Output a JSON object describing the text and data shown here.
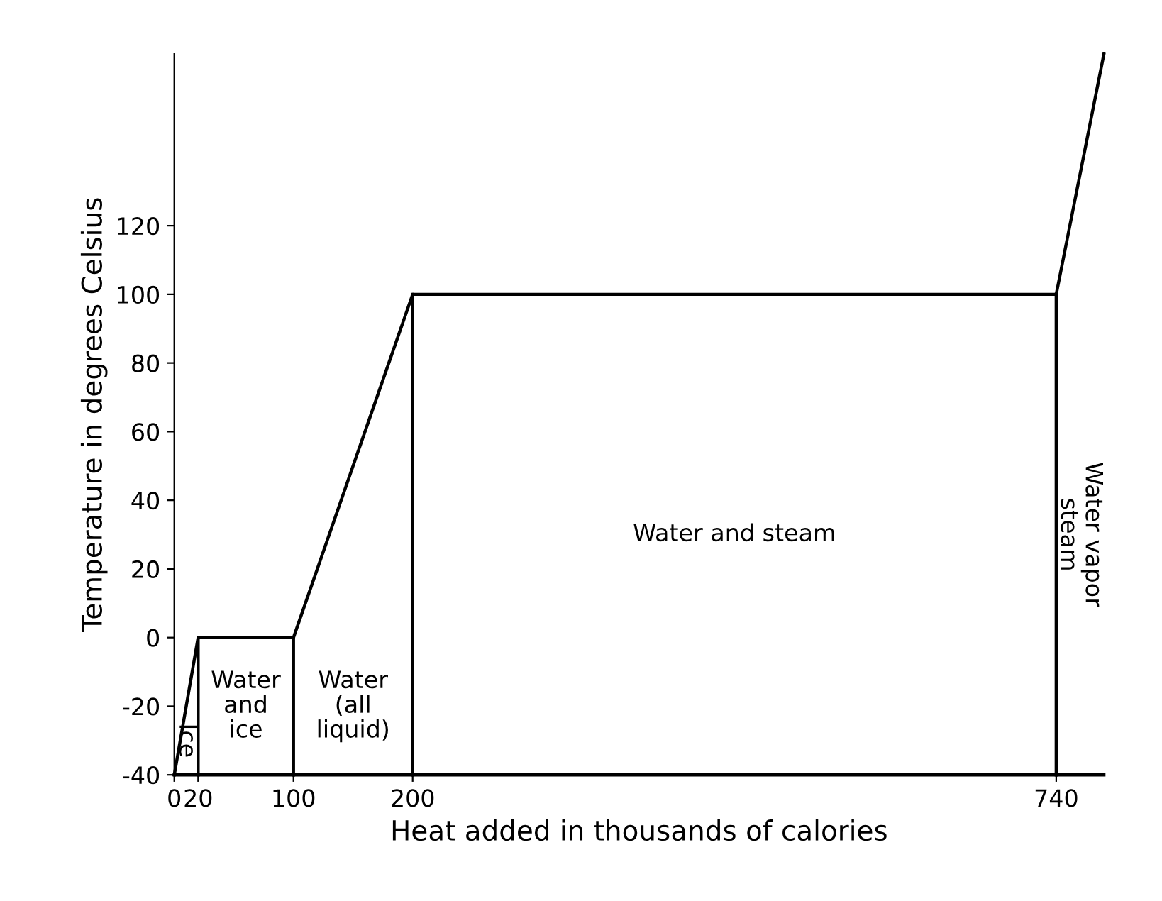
{
  "chart_data": {
    "type": "line",
    "xlabel": "Heat added in thousands of calories",
    "ylabel": "Temperature in degrees Celsius",
    "series": [
      {
        "color": "#000000",
        "x": [
          0,
          20,
          100,
          200,
          740,
          780
        ],
        "values": [
          -40,
          0,
          0,
          100,
          100,
          170
        ]
      },
      {
        "color": "#000000",
        "x": [
          20,
          20
        ],
        "values": [
          0,
          -40
        ]
      },
      {
        "color": "#000000",
        "x": [
          100,
          100
        ],
        "values": [
          0,
          -40
        ]
      },
      {
        "color": "#000000",
        "x": [
          200,
          200
        ],
        "values": [
          100,
          -40
        ]
      },
      {
        "color": "#000000",
        "x": [
          740,
          740
        ],
        "values": [
          100,
          -40
        ]
      },
      {
        "color": "#000000",
        "x": [
          0,
          780
        ],
        "values": [
          -40,
          -40
        ]
      }
    ],
    "xlim": [
      0,
      780
    ],
    "xticks": [
      0,
      20,
      100,
      200,
      740
    ],
    "ylim": [
      -40,
      170
    ],
    "yticks": [
      -40,
      -20,
      0,
      20,
      40,
      60,
      80,
      100,
      120
    ],
    "grid": false,
    "marker": "none",
    "line_style": "solid",
    "annotations": [
      "Ice",
      "Water\nand\nice",
      "Water\n(all\nliquid)",
      "Water and steam",
      "Water vapor\nsteam"
    ]
  }
}
